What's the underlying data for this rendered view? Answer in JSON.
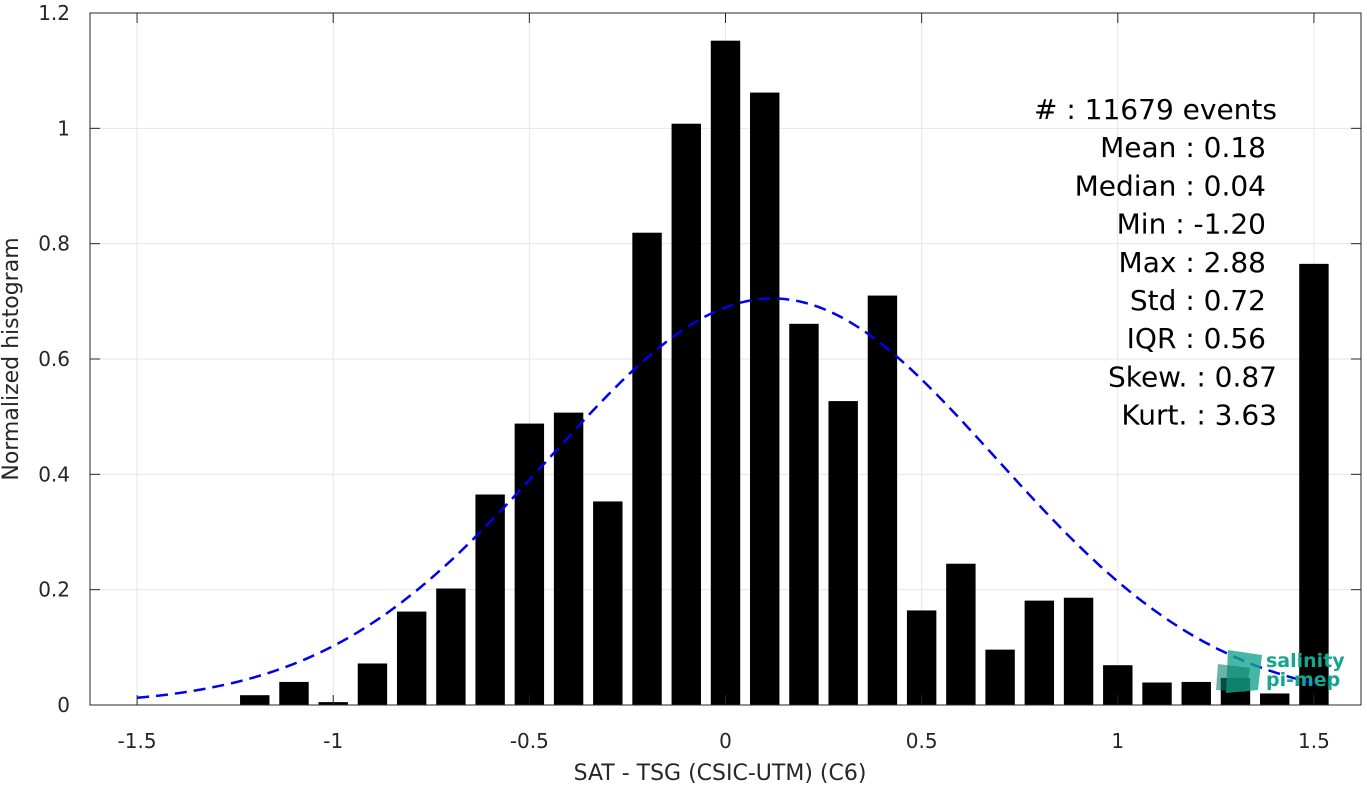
{
  "chart_data": {
    "type": "bar",
    "xlabel": "SAT - TSG (CSIC-UTM) (C6)",
    "ylabel": "Normalized histogram",
    "xlim": [
      -1.62,
      1.62
    ],
    "ylim": [
      0,
      1.2
    ],
    "xticks": [
      -1.5,
      -1,
      -0.5,
      0,
      0.5,
      1,
      1.5
    ],
    "xtick_labels": [
      "-1.5",
      "-1",
      "-0.5",
      "0",
      "0.5",
      "1",
      "1.5"
    ],
    "yticks": [
      0,
      0.2,
      0.4,
      0.6,
      0.8,
      1,
      1.2
    ],
    "ytick_labels": [
      "0",
      "0.2",
      "0.4",
      "0.6",
      "0.8",
      "1",
      "1.2"
    ],
    "grid": true,
    "bar_width": 0.075,
    "bars": {
      "x": [
        -1.2,
        -1.1,
        -1.0,
        -0.9,
        -0.8,
        -0.7,
        -0.6,
        -0.5,
        -0.4,
        -0.3,
        -0.2,
        -0.1,
        0.0,
        0.1,
        0.2,
        0.3,
        0.4,
        0.5,
        0.6,
        0.7,
        0.8,
        0.9,
        1.0,
        1.1,
        1.2,
        1.3,
        1.4,
        1.5
      ],
      "values": [
        0.017,
        0.04,
        0.005,
        0.072,
        0.162,
        0.202,
        0.365,
        0.488,
        0.507,
        0.353,
        0.819,
        1.008,
        1.152,
        1.062,
        0.661,
        0.527,
        0.71,
        0.164,
        0.245,
        0.096,
        0.181,
        0.186,
        0.069,
        0.039,
        0.04,
        0.047,
        0.02,
        0.765
      ],
      "color": "#000000"
    },
    "fit_curve": {
      "style": "dashed",
      "color": "#0000ee",
      "mean": 0.12,
      "std": 0.57,
      "peak": 0.705,
      "x_range": [
        -1.5,
        1.5
      ]
    },
    "stats": [
      {
        "label": "#  : 11679 events"
      },
      {
        "label": "Mean : 0.18"
      },
      {
        "label": "Median : 0.04"
      },
      {
        "label": "Min : -1.20"
      },
      {
        "label": "Max : 2.88"
      },
      {
        "label": "Std : 0.72"
      },
      {
        "label": "IQR : 0.56"
      },
      {
        "label": "Skew. : 0.87"
      },
      {
        "label": "Kurt. : 3.63"
      }
    ]
  },
  "logo": {
    "line1": "salinity",
    "line2": "pi-mep",
    "color": "#16a58e"
  }
}
